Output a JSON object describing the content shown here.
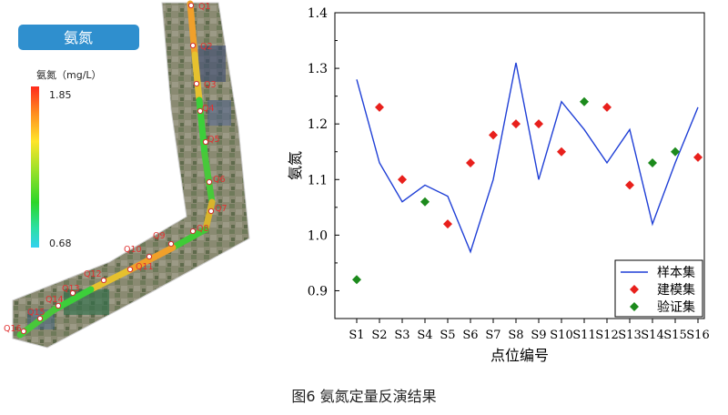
{
  "map": {
    "badge": "氨氮",
    "legend_title": "氨氮（mg/L）",
    "legend_max": "1.85",
    "legend_min": "0.68",
    "legend_colors": [
      "#ff2a1c",
      "#ff8a1f",
      "#ffe52a",
      "#9be12a",
      "#2dd62a",
      "#2be0a4",
      "#33d1f0"
    ],
    "route_colors": [
      "#f0a02a",
      "#e6c12e",
      "#3ccf3a",
      "#48c83a",
      "#d9b42c",
      "#3fcb36"
    ],
    "points": [
      "Q1",
      "Q2",
      "Q3",
      "Q4",
      "Q5",
      "Q6",
      "Q7",
      "Q8",
      "Q9",
      "Q10",
      "Q11",
      "Q12",
      "Q13",
      "Q14",
      "Q15",
      "Q16"
    ]
  },
  "chart_data": {
    "type": "line+scatter",
    "categories": [
      "S1",
      "S2",
      "S3",
      "S4",
      "S5",
      "S6",
      "S7",
      "S8",
      "S9",
      "S10",
      "S11",
      "S12",
      "S13",
      "S14",
      "S15",
      "S16"
    ],
    "xlabel": "点位编号",
    "ylabel": "氨氮",
    "ylim": [
      0.85,
      1.4
    ],
    "yticks": [
      "0.9",
      "1.0",
      "1.1",
      "1.2",
      "1.3",
      "1.4"
    ],
    "series": [
      {
        "name": "样本集",
        "kind": "line",
        "color": "#1f3fd6",
        "values": [
          1.28,
          1.13,
          1.06,
          1.09,
          1.07,
          0.97,
          1.1,
          1.31,
          1.1,
          1.24,
          1.19,
          1.13,
          1.19,
          1.02,
          1.13,
          1.23
        ]
      },
      {
        "name": "建模集",
        "kind": "marker",
        "color": "#e8201c",
        "points": [
          [
            2,
            1.23
          ],
          [
            3,
            1.1
          ],
          [
            5,
            1.02
          ],
          [
            6,
            1.13
          ],
          [
            7,
            1.18
          ],
          [
            8,
            1.2
          ],
          [
            9,
            1.2
          ],
          [
            10,
            1.15
          ],
          [
            12,
            1.23
          ],
          [
            13,
            1.09
          ],
          [
            16,
            1.14
          ]
        ]
      },
      {
        "name": "验证集",
        "kind": "marker",
        "color": "#1c8a1c",
        "points": [
          [
            1,
            0.92
          ],
          [
            4,
            1.06
          ],
          [
            11,
            1.24
          ],
          [
            14,
            1.13
          ],
          [
            15,
            1.15
          ]
        ]
      }
    ]
  },
  "caption": "图6   氨氮定量反演结果"
}
